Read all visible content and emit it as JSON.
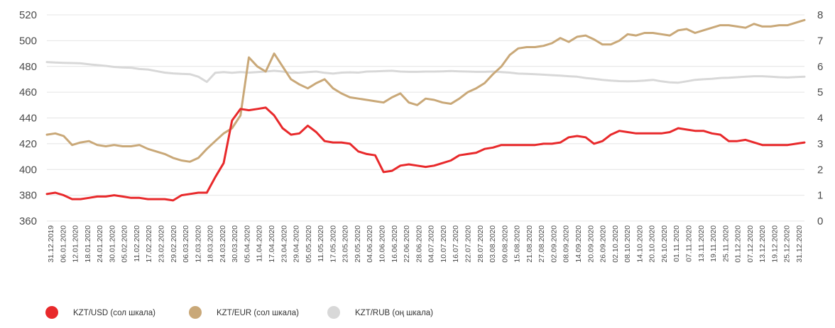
{
  "chart_data": {
    "type": "line",
    "left_axis": {
      "ylim": [
        360,
        520
      ],
      "ticks": [
        360,
        380,
        400,
        420,
        440,
        460,
        480,
        500,
        520
      ]
    },
    "right_axis": {
      "ylim": [
        0,
        8
      ],
      "ticks": [
        0,
        1,
        2,
        3,
        4,
        5,
        6,
        7,
        8
      ]
    },
    "grid": "horizontal",
    "legend_position": "bottom-left",
    "x_tick_labels": [
      "31.12.2019",
      "06.01.2020",
      "12.01.2020",
      "18.01.2020",
      "24.01.2020",
      "30.01.2020",
      "05.02.2020",
      "11.02.2020",
      "17.02.2020",
      "23.02.2020",
      "29.02.2020",
      "06.03.2020",
      "12.03.2020",
      "18.03.2020",
      "24.03.2020",
      "30.03.2020",
      "05.04.2020",
      "11.04.2020",
      "17.04.2020",
      "23.04.2020",
      "29.04.2020",
      "05.05.2020",
      "11.05.2020",
      "17.05.2020",
      "23.05.2020",
      "29.05.2020",
      "04.06.2020",
      "10.06.2020",
      "16.06.2020",
      "22.06.2020",
      "28.06.2020",
      "04.07.2020",
      "10.07.2020",
      "16.07.2020",
      "22.07.2020",
      "28.07.2020",
      "03.08.2020",
      "09.08.2020",
      "15.08.2020",
      "21.08.2020",
      "27.08.2020",
      "02.09.2020",
      "08.09.2020",
      "14.09.2020",
      "20.09.2020",
      "26.09.2020",
      "02.10.2020",
      "08.10.2020",
      "14.10.2020",
      "20.10.2020",
      "26.10.2020",
      "01.11.2020",
      "07.11.2020",
      "13.11.2020",
      "19.11.2020",
      "25.11.2020",
      "01.12.2020",
      "07.12.2020",
      "13.12.2020",
      "19.12.2020",
      "25.12.2020",
      "31.12.2020"
    ],
    "series": [
      {
        "name": "KZT/USD (сол шкала)",
        "axis": "left",
        "color": "#e8292b",
        "values": [
          381,
          382,
          380,
          377,
          377,
          378,
          379,
          379,
          380,
          379,
          378,
          378,
          377,
          377,
          377,
          376,
          380,
          381,
          382,
          382,
          394,
          405,
          438,
          447,
          446,
          447,
          448,
          442,
          432,
          427,
          428,
          434,
          429,
          422,
          421,
          421,
          420,
          414,
          412,
          411,
          398,
          399,
          403,
          404,
          403,
          402,
          403,
          405,
          407,
          411,
          412,
          413,
          416,
          417,
          419,
          419,
          419,
          419,
          419,
          420,
          420,
          421,
          425,
          426,
          425,
          420,
          422,
          427,
          430,
          429,
          428,
          428,
          428,
          428,
          429,
          432,
          431,
          430,
          430,
          428,
          427,
          422,
          422,
          423,
          421,
          419,
          419,
          419,
          419,
          420,
          421
        ]
      },
      {
        "name": "KZT/EUR (сол шкала)",
        "axis": "left",
        "color": "#c9a878",
        "values": [
          427,
          428,
          426,
          419,
          421,
          422,
          419,
          418,
          419,
          418,
          418,
          419,
          416,
          414,
          412,
          409,
          407,
          406,
          409,
          416,
          422,
          428,
          432,
          442,
          487,
          480,
          476,
          490,
          480,
          470,
          466,
          463,
          467,
          470,
          463,
          459,
          456,
          455,
          454,
          453,
          452,
          456,
          459,
          452,
          450,
          455,
          454,
          452,
          451,
          455,
          460,
          463,
          467,
          474,
          480,
          489,
          494,
          495,
          495,
          496,
          498,
          502,
          499,
          503,
          504,
          501,
          497,
          497,
          500,
          505,
          504,
          506,
          506,
          505,
          504,
          508,
          509,
          506,
          508,
          510,
          512,
          512,
          511,
          510,
          513,
          511,
          511,
          512,
          512,
          514,
          516
        ]
      },
      {
        "name": "KZT/RUB (оң шкала)",
        "axis": "right",
        "color": "#d8d8d8",
        "values": [
          6.17,
          6.15,
          6.14,
          6.13,
          6.12,
          6.08,
          6.05,
          6.02,
          5.98,
          5.96,
          5.95,
          5.9,
          5.88,
          5.82,
          5.76,
          5.73,
          5.71,
          5.7,
          5.6,
          5.4,
          5.75,
          5.78,
          5.75,
          5.78,
          5.76,
          5.78,
          5.8,
          5.83,
          5.8,
          5.75,
          5.76,
          5.78,
          5.8,
          5.75,
          5.72,
          5.76,
          5.77,
          5.76,
          5.8,
          5.81,
          5.82,
          5.83,
          5.8,
          5.79,
          5.79,
          5.8,
          5.8,
          5.81,
          5.82,
          5.81,
          5.8,
          5.79,
          5.79,
          5.8,
          5.78,
          5.76,
          5.72,
          5.71,
          5.7,
          5.68,
          5.66,
          5.64,
          5.62,
          5.6,
          5.55,
          5.52,
          5.48,
          5.45,
          5.43,
          5.42,
          5.43,
          5.45,
          5.48,
          5.42,
          5.38,
          5.37,
          5.42,
          5.48,
          5.5,
          5.52,
          5.55,
          5.56,
          5.58,
          5.6,
          5.62,
          5.62,
          5.6,
          5.58,
          5.57,
          5.59,
          5.6
        ]
      }
    ]
  }
}
